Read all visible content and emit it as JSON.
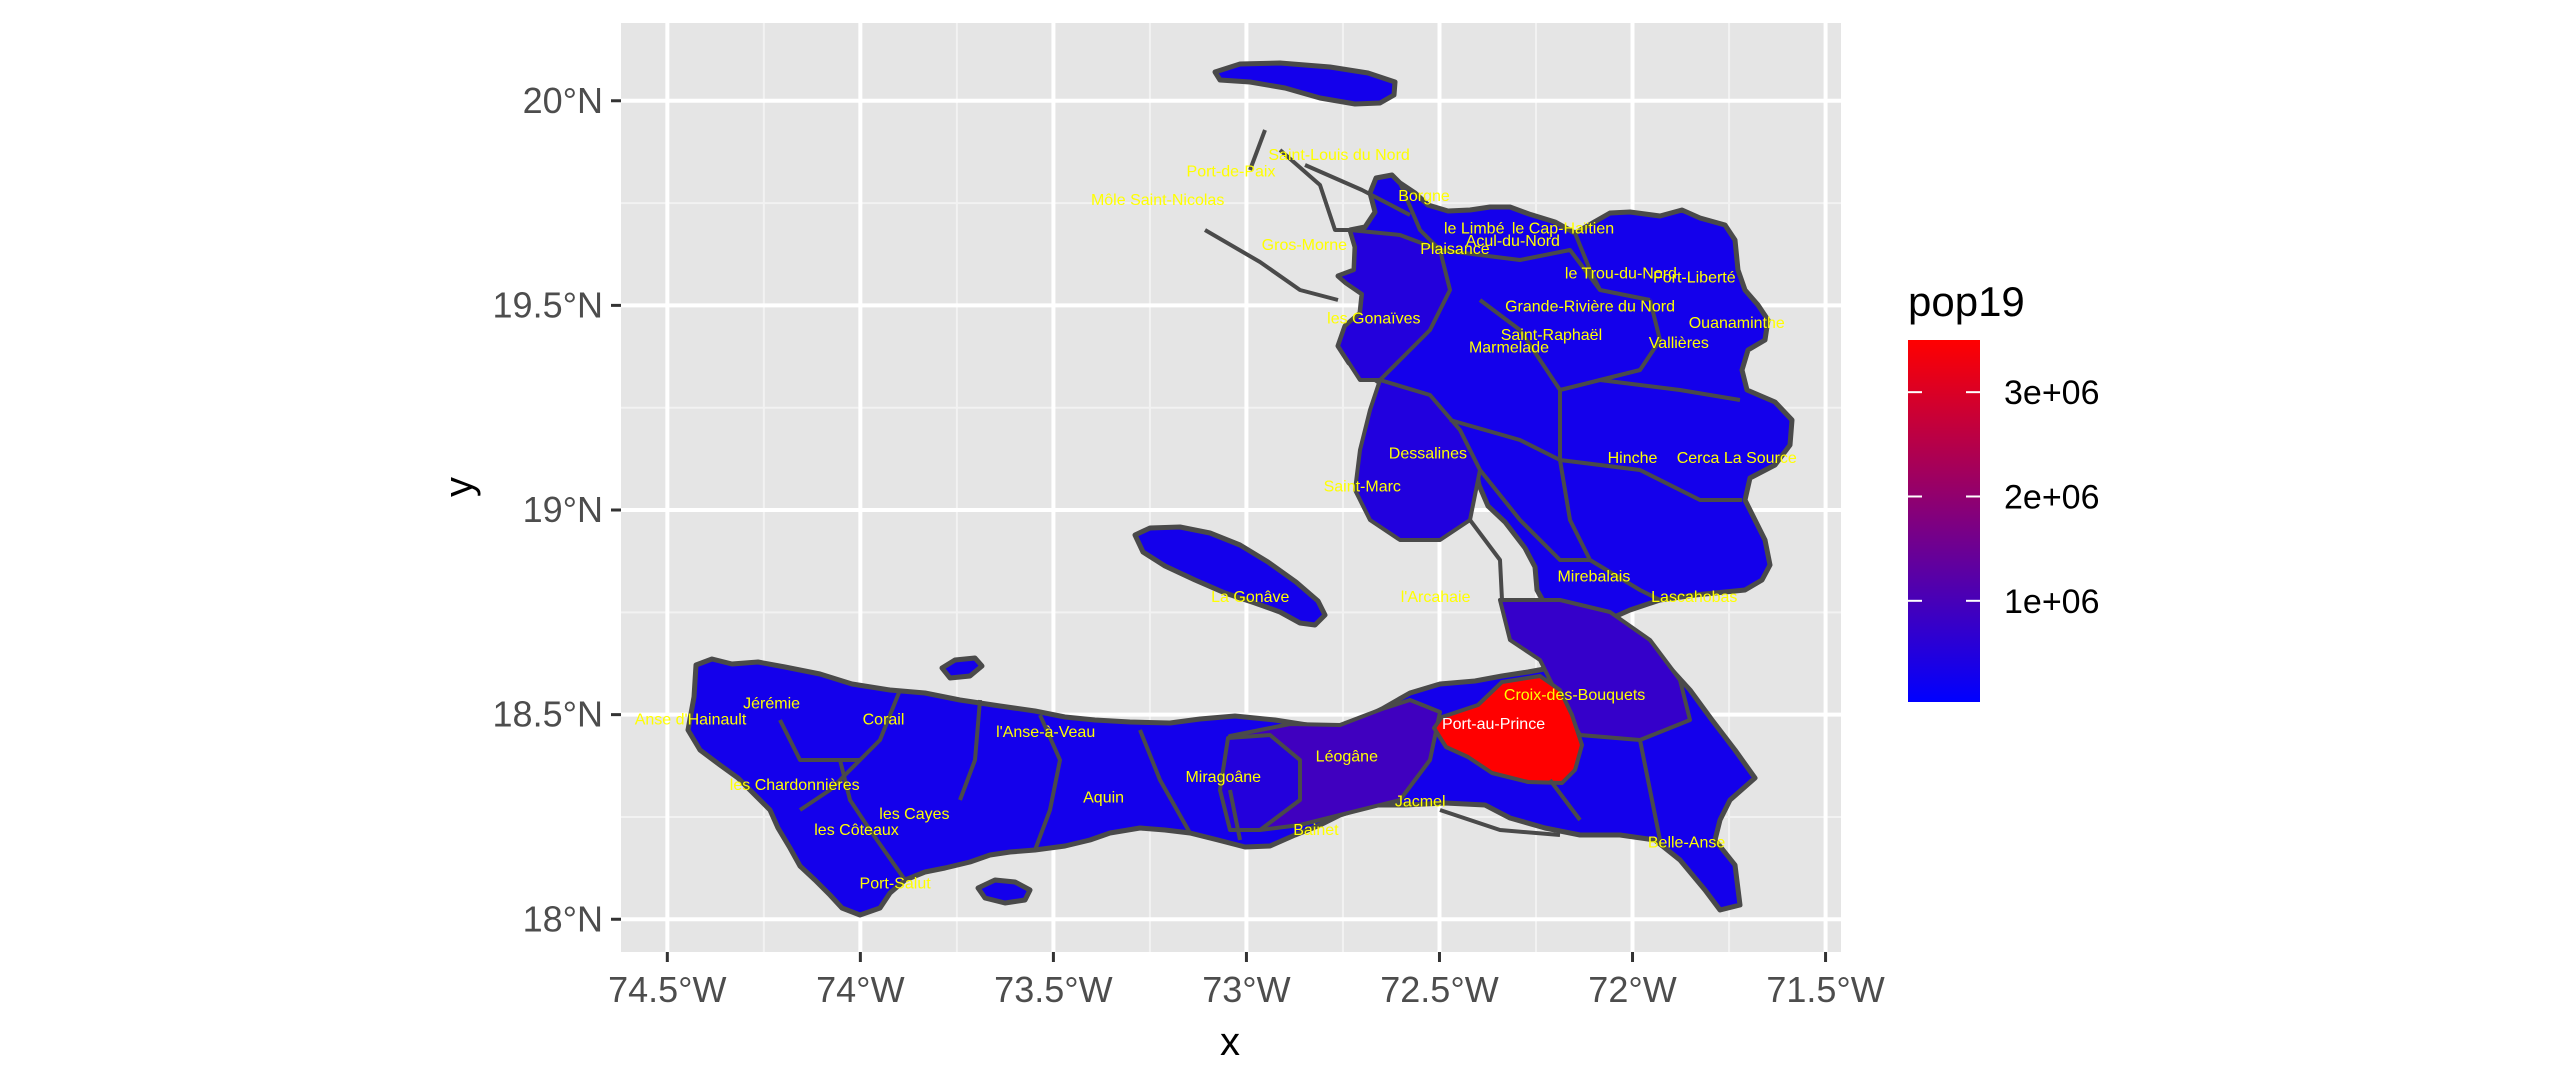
{
  "chart_data": {
    "type": "choropleth-map",
    "x_axis": {
      "title": "x",
      "ticks": [
        "74.5°W",
        "74°W",
        "73.5°W",
        "73°W",
        "72.5°W",
        "72°W",
        "71.5°W"
      ],
      "tick_values": [
        -74.5,
        -74.0,
        -73.5,
        -73.0,
        -72.5,
        -72.0,
        -71.5
      ],
      "lim": [
        -74.62,
        -71.46
      ]
    },
    "y_axis": {
      "title": "y",
      "ticks": [
        "18°N",
        "18.5°N",
        "19°N",
        "19.5°N",
        "20°N"
      ],
      "tick_values": [
        18.0,
        18.5,
        19.0,
        19.5,
        20.0
      ],
      "lim": [
        17.92,
        20.19
      ]
    },
    "grid": true,
    "panel_background": "#e5e5e5",
    "legend": {
      "title": "pop19",
      "position": "right",
      "labels": [
        "3e+06",
        "2e+06",
        "1e+06"
      ],
      "label_values": [
        3000000,
        2000000,
        1000000
      ],
      "range": [
        30000,
        3500000
      ],
      "color_low": "#0000ff",
      "color_high": "#ff0000"
    },
    "label_color": "#ffff00",
    "border_color": "#4a4a4a",
    "regions": [
      {
        "name": "Môle Saint-Nicolas",
        "lon": -73.23,
        "lat": 19.76,
        "pop19": 250000
      },
      {
        "name": "Port-de-Paix",
        "lon": -73.04,
        "lat": 19.83,
        "pop19": 480000
      },
      {
        "name": "Saint-Louis du Nord",
        "lon": -72.76,
        "lat": 19.87,
        "pop19": 300000
      },
      {
        "name": "Borgne",
        "lon": -72.54,
        "lat": 19.77,
        "pop19": 280000
      },
      {
        "name": "Gros-Morne",
        "lon": -72.85,
        "lat": 19.65,
        "pop19": 450000
      },
      {
        "name": "Plaisance",
        "lon": -72.46,
        "lat": 19.64,
        "pop19": 350000
      },
      {
        "name": "le Limbé",
        "lon": -72.41,
        "lat": 19.69,
        "pop19": 250000
      },
      {
        "name": "Acul-du-Nord",
        "lon": -72.31,
        "lat": 19.66,
        "pop19": 200000
      },
      {
        "name": "le Cap-Haïtien",
        "lon": -72.18,
        "lat": 19.69,
        "pop19": 400000
      },
      {
        "name": "le Trou-du-Nord",
        "lon": -72.03,
        "lat": 19.58,
        "pop19": 180000
      },
      {
        "name": "Fort-Liberté",
        "lon": -71.84,
        "lat": 19.57,
        "pop19": 120000
      },
      {
        "name": "Ouanaminthe",
        "lon": -71.73,
        "lat": 19.46,
        "pop19": 150000
      },
      {
        "name": "Grande-Rivière du Nord",
        "lon": -72.11,
        "lat": 19.5,
        "pop19": 200000
      },
      {
        "name": "Saint-Raphaël",
        "lon": -72.21,
        "lat": 19.43,
        "pop19": 220000
      },
      {
        "name": "Vallières",
        "lon": -71.88,
        "lat": 19.41,
        "pop19": 120000
      },
      {
        "name": "les Gonaïves",
        "lon": -72.67,
        "lat": 19.47,
        "pop19": 500000
      },
      {
        "name": "Marmelade",
        "lon": -72.32,
        "lat": 19.4,
        "pop19": 350000
      },
      {
        "name": "Dessalines",
        "lon": -72.53,
        "lat": 19.14,
        "pop19": 450000
      },
      {
        "name": "Hinche",
        "lon": -72.0,
        "lat": 19.13,
        "pop19": 330000
      },
      {
        "name": "Cerca La Source",
        "lon": -71.73,
        "lat": 19.13,
        "pop19": 120000
      },
      {
        "name": "Saint-Marc",
        "lon": -72.7,
        "lat": 19.06,
        "pop19": 480000
      },
      {
        "name": "Mirebalais",
        "lon": -72.1,
        "lat": 18.84,
        "pop19": 250000
      },
      {
        "name": "Lascahobas",
        "lon": -71.84,
        "lat": 18.79,
        "pop19": 150000
      },
      {
        "name": "l'Arcahaie",
        "lon": -72.51,
        "lat": 18.79,
        "pop19": 250000
      },
      {
        "name": "La Gonâve",
        "lon": -72.99,
        "lat": 18.79,
        "pop19": 90000
      },
      {
        "name": "Croix-des-Bouquets",
        "lon": -72.15,
        "lat": 18.55,
        "pop19": 750000
      },
      {
        "name": "Port-au-Prince",
        "lon": -72.36,
        "lat": 18.48,
        "pop19": 3500000
      },
      {
        "name": "Léogâne",
        "lon": -72.74,
        "lat": 18.4,
        "pop19": 900000
      },
      {
        "name": "Jacmel",
        "lon": -72.55,
        "lat": 18.29,
        "pop19": 280000
      },
      {
        "name": "Bainet",
        "lon": -72.82,
        "lat": 18.22,
        "pop19": 150000
      },
      {
        "name": "Belle-Anse",
        "lon": -71.86,
        "lat": 18.19,
        "pop19": 100000
      },
      {
        "name": "Miragoâne",
        "lon": -73.06,
        "lat": 18.35,
        "pop19": 500000
      },
      {
        "name": "Aquin",
        "lon": -73.37,
        "lat": 18.3,
        "pop19": 170000
      },
      {
        "name": "l'Anse-à-Veau",
        "lon": -73.52,
        "lat": 18.46,
        "pop19": 180000
      },
      {
        "name": "Corail",
        "lon": -73.94,
        "lat": 18.49,
        "pop19": 100000
      },
      {
        "name": "Jérémie",
        "lon": -74.23,
        "lat": 18.53,
        "pop19": 250000
      },
      {
        "name": "Anse d'Hainault",
        "lon": -74.44,
        "lat": 18.49,
        "pop19": 80000
      },
      {
        "name": "les Chardonnières",
        "lon": -74.17,
        "lat": 18.33,
        "pop19": 70000
      },
      {
        "name": "les Cayes",
        "lon": -73.86,
        "lat": 18.26,
        "pop19": 400000
      },
      {
        "name": "les Côteaux",
        "lon": -74.01,
        "lat": 18.22,
        "pop19": 60000
      },
      {
        "name": "Port-Salut",
        "lon": -73.91,
        "lat": 18.09,
        "pop19": 90000
      }
    ]
  }
}
